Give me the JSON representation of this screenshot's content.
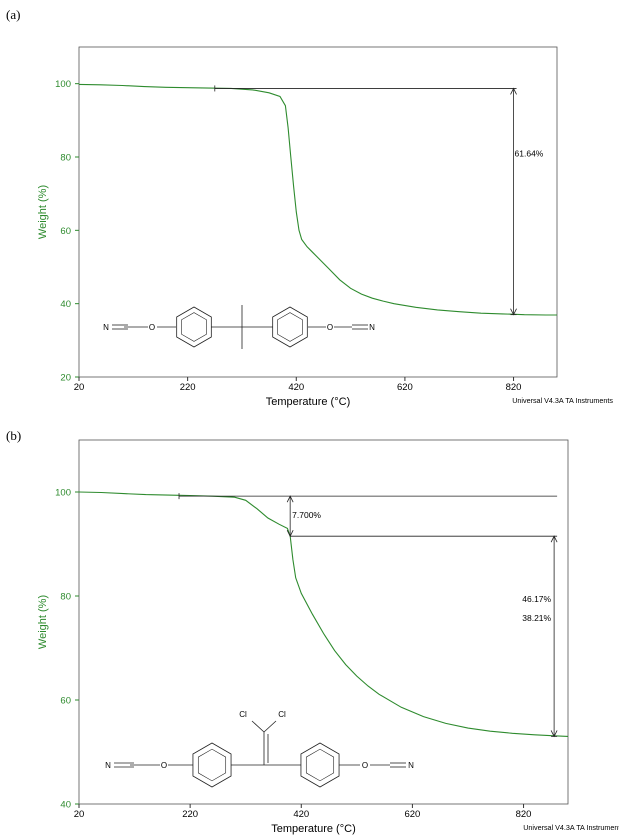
{
  "chart_data": [
    {
      "panel_label": "(a)",
      "type": "line",
      "xlabel": "Temperature (°C)",
      "ylabel": "Weight (%)",
      "xlim": [
        20,
        900
      ],
      "ylim": [
        20,
        110
      ],
      "x_ticks": [
        20,
        220,
        420,
        620,
        820
      ],
      "y_ticks": [
        20,
        40,
        60,
        80,
        100
      ],
      "footer": "Universal V4.3A TA Instruments",
      "series_color": "#2e8b2e",
      "series": [
        {
          "name": "",
          "x": [
            20,
            60,
            100,
            140,
            180,
            220,
            260,
            300,
            340,
            370,
            390,
            400,
            405,
            410,
            415,
            420,
            425,
            430,
            440,
            450,
            460,
            480,
            500,
            520,
            540,
            560,
            580,
            600,
            640,
            680,
            720,
            760,
            800,
            840,
            880,
            900
          ],
          "y": [
            99.8,
            99.7,
            99.5,
            99.2,
            99.0,
            98.9,
            98.8,
            98.7,
            98.3,
            97.5,
            96.5,
            94,
            88,
            80,
            72,
            65,
            60,
            57.5,
            55.5,
            54,
            52.5,
            49.5,
            46.5,
            44.2,
            42.6,
            41.5,
            40.7,
            40.0,
            39.0,
            38.3,
            37.8,
            37.4,
            37.2,
            37.0,
            36.9,
            36.9
          ]
        }
      ],
      "annotations": [
        {
          "type": "step",
          "text": "61.64%",
          "x": 820,
          "y_from": 98.7,
          "y_to": 37.0,
          "start_x": 270
        }
      ],
      "structure": {
        "atoms": [
          "N",
          "O",
          "O",
          "N"
        ]
      }
    },
    {
      "panel_label": "(b)",
      "type": "line",
      "xlabel": "Temperature (°C)",
      "ylabel": "Weight (%)",
      "xlim": [
        20,
        900
      ],
      "ylim": [
        40,
        110
      ],
      "x_ticks": [
        20,
        220,
        420,
        620,
        820
      ],
      "y_ticks": [
        40,
        60,
        80,
        100
      ],
      "footer": "Universal V4.3A TA Instruments",
      "series_color": "#2e8b2e",
      "series": [
        {
          "name": "",
          "x": [
            20,
            60,
            100,
            140,
            180,
            220,
            260,
            300,
            320,
            340,
            360,
            380,
            395,
            400,
            405,
            410,
            420,
            440,
            460,
            480,
            500,
            520,
            540,
            560,
            600,
            640,
            680,
            720,
            760,
            800,
            840,
            880,
            900
          ],
          "y": [
            100,
            99.9,
            99.7,
            99.5,
            99.4,
            99.3,
            99.2,
            99.0,
            98.4,
            96.8,
            95.0,
            93.8,
            93.0,
            91.5,
            87,
            83.5,
            80.5,
            76.5,
            72.8,
            69.5,
            66.8,
            64.6,
            62.7,
            61.1,
            58.6,
            56.8,
            55.5,
            54.6,
            54.0,
            53.6,
            53.3,
            53.1,
            53.0
          ]
        }
      ],
      "annotations": [
        {
          "type": "step",
          "text": "7.700%",
          "x": 400,
          "y_from": 99.2,
          "y_to": 91.5,
          "start_x": 200
        },
        {
          "type": "step",
          "text": "46.17%",
          "x": 875,
          "y_from": 99.2,
          "y_to": 53.0,
          "start_x": null
        },
        {
          "type": "step",
          "text": "38.21%",
          "x": 875,
          "y_from": 91.5,
          "y_to": 53.0,
          "start_x": null
        }
      ],
      "structure": {
        "atoms": [
          "Cl",
          "Cl",
          "N",
          "O",
          "O",
          "N"
        ]
      }
    }
  ]
}
